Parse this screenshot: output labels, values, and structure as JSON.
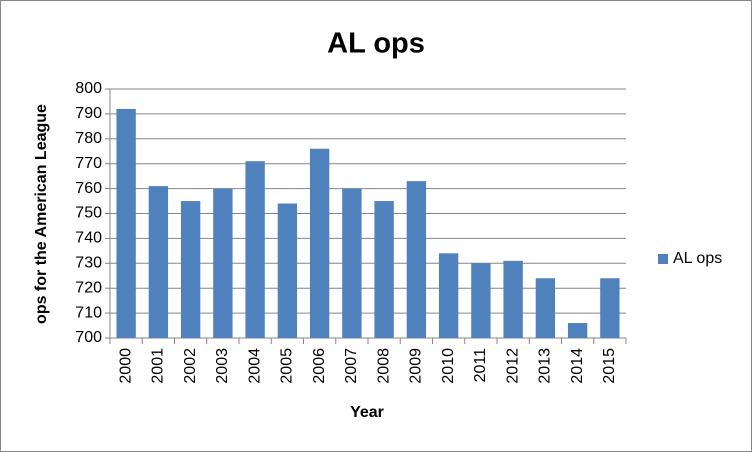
{
  "chart_data": {
    "type": "bar",
    "title": "AL ops",
    "x_label": "Year",
    "y_label": "ops for the American League",
    "categories": [
      "2000",
      "2001",
      "2002",
      "2003",
      "2004",
      "2005",
      "2006",
      "2007",
      "2008",
      "2009",
      "2010",
      "2011",
      "2012",
      "2013",
      "2014",
      "2015"
    ],
    "series": [
      {
        "name": "AL ops",
        "color": "#4f81bd",
        "values": [
          792,
          761,
          755,
          760,
          771,
          754,
          776,
          760,
          755,
          763,
          734,
          730,
          731,
          724,
          706,
          724
        ]
      }
    ],
    "ylim": [
      700,
      800
    ],
    "yticks": [
      700,
      710,
      720,
      730,
      740,
      750,
      760,
      770,
      780,
      790,
      800
    ],
    "grid": true,
    "legend": "right"
  }
}
